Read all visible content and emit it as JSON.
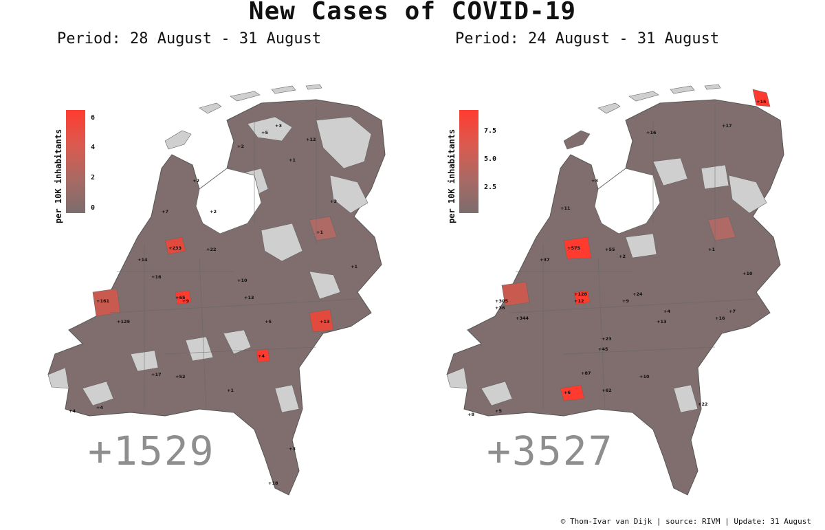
{
  "title": "New Cases of COVID-19",
  "footer": "© Thom-Ivar van Dijk | source: RIVM | Update: 31 August",
  "colors": {
    "no_cases": "#cfcfcf",
    "low": "#7d6f6f",
    "mid": "#a86a66",
    "high": "#ff3b30",
    "border": "#666666"
  },
  "panels": [
    {
      "period": "Period: 28 August - 31 August",
      "total": "+1529",
      "legend_label": "per 10K inhabitants",
      "legend_ticks": [
        "6",
        "4",
        "2",
        "0"
      ],
      "visible_region_labels": [
        "+233",
        "+161",
        "+129",
        "+65",
        "+52",
        "+22",
        "+18",
        "+17",
        "+16",
        "+14",
        "+13",
        "+12",
        "+10",
        "+9",
        "+7",
        "+6",
        "+5",
        "+4",
        "+3",
        "+2",
        "+1"
      ]
    },
    {
      "period": "Period: 24 August - 31 August",
      "total": "+3527",
      "legend_label": "per 10K inhabitants",
      "legend_ticks": [
        "7.5",
        "5.0",
        "2.5"
      ],
      "visible_region_labels": [
        "+575",
        "+344",
        "+305",
        "+128",
        "+87",
        "+62",
        "+55",
        "+45",
        "+37",
        "+36",
        "+24",
        "+23",
        "+22",
        "+16",
        "+15",
        "+13",
        "+12",
        "+11",
        "+10",
        "+9",
        "+8",
        "+7",
        "+6",
        "+5",
        "+4",
        "+3",
        "+2",
        "+1"
      ]
    }
  ]
}
